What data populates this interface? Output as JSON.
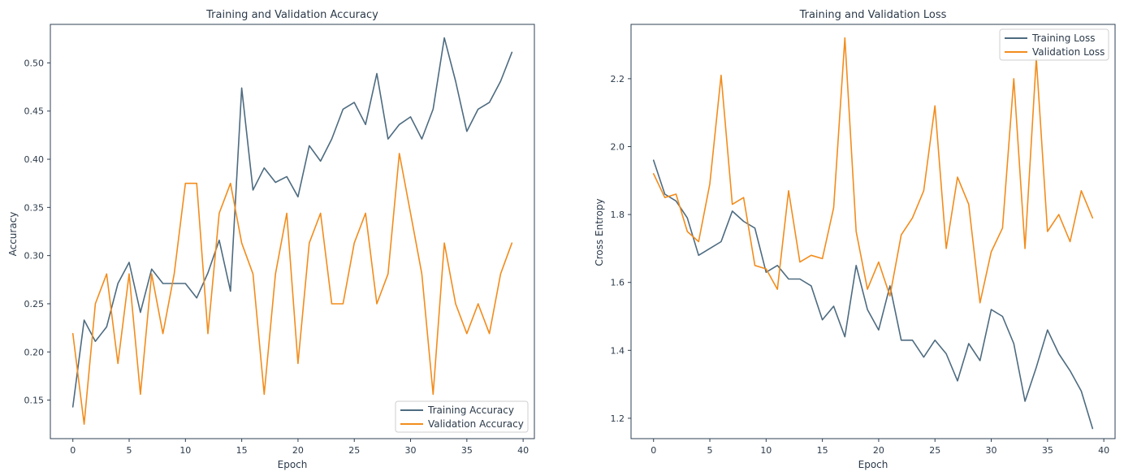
{
  "chart_data": [
    {
      "type": "line",
      "title": "Training and Validation Accuracy",
      "xlabel": "Epoch",
      "ylabel": "Accuracy",
      "xlim": [
        -2,
        41
      ],
      "ylim": [
        0.11,
        0.54
      ],
      "xticks": [
        0,
        5,
        10,
        15,
        20,
        25,
        30,
        35,
        40
      ],
      "yticks": [
        0.15,
        0.2,
        0.25,
        0.3,
        0.35,
        0.4,
        0.45,
        0.5
      ],
      "ytick_decimals": 2,
      "grid": false,
      "legend_position": "lower-right",
      "x": [
        0,
        1,
        2,
        3,
        4,
        5,
        6,
        7,
        8,
        9,
        10,
        11,
        12,
        13,
        14,
        15,
        16,
        17,
        18,
        19,
        20,
        21,
        22,
        23,
        24,
        25,
        26,
        27,
        28,
        29,
        30,
        31,
        32,
        33,
        34,
        35,
        36,
        37,
        38,
        39
      ],
      "series": [
        {
          "name": "Training Accuracy",
          "color": "#4d6b80",
          "values": [
            0.143,
            0.233,
            0.211,
            0.226,
            0.271,
            0.293,
            0.241,
            0.286,
            0.271,
            0.271,
            0.271,
            0.256,
            0.282,
            0.316,
            0.263,
            0.474,
            0.368,
            0.391,
            0.376,
            0.382,
            0.361,
            0.414,
            0.398,
            0.421,
            0.452,
            0.459,
            0.436,
            0.489,
            0.421,
            0.436,
            0.444,
            0.421,
            0.452,
            0.526,
            0.481,
            0.429,
            0.452,
            0.459,
            0.481,
            0.511
          ]
        },
        {
          "name": "Validation Accuracy",
          "color": "#f28c1c",
          "values": [
            0.219,
            0.125,
            0.25,
            0.281,
            0.188,
            0.281,
            0.156,
            0.281,
            0.219,
            0.281,
            0.375,
            0.375,
            0.219,
            0.344,
            0.375,
            0.313,
            0.281,
            0.156,
            0.281,
            0.344,
            0.188,
            0.313,
            0.344,
            0.25,
            0.25,
            0.313,
            0.344,
            0.25,
            0.281,
            0.406,
            0.344,
            0.281,
            0.156,
            0.313,
            0.25,
            0.219,
            0.25,
            0.219,
            0.281,
            0.313
          ]
        }
      ]
    },
    {
      "type": "line",
      "title": "Training and Validation Loss",
      "xlabel": "Epoch",
      "ylabel": "Cross Entropy",
      "xlim": [
        -2,
        41
      ],
      "ylim": [
        1.14,
        2.36
      ],
      "xticks": [
        0,
        5,
        10,
        15,
        20,
        25,
        30,
        35,
        40
      ],
      "yticks": [
        1.2,
        1.4,
        1.6,
        1.8,
        2.0,
        2.2
      ],
      "ytick_decimals": 1,
      "grid": false,
      "legend_position": "upper-right",
      "x": [
        0,
        1,
        2,
        3,
        4,
        5,
        6,
        7,
        8,
        9,
        10,
        11,
        12,
        13,
        14,
        15,
        16,
        17,
        18,
        19,
        20,
        21,
        22,
        23,
        24,
        25,
        26,
        27,
        28,
        29,
        30,
        31,
        32,
        33,
        34,
        35,
        36,
        37,
        38,
        39
      ],
      "series": [
        {
          "name": "Training Loss",
          "color": "#4d6b80",
          "values": [
            1.96,
            1.86,
            1.84,
            1.79,
            1.68,
            1.7,
            1.72,
            1.81,
            1.78,
            1.76,
            1.63,
            1.65,
            1.61,
            1.61,
            1.59,
            1.49,
            1.53,
            1.44,
            1.65,
            1.52,
            1.46,
            1.59,
            1.43,
            1.43,
            1.38,
            1.43,
            1.39,
            1.31,
            1.42,
            1.37,
            1.52,
            1.5,
            1.42,
            1.25,
            1.35,
            1.46,
            1.39,
            1.34,
            1.28,
            1.17
          ]
        },
        {
          "name": "Validation Loss",
          "color": "#f28c1c",
          "values": [
            1.92,
            1.85,
            1.86,
            1.75,
            1.72,
            1.89,
            2.21,
            1.83,
            1.85,
            1.65,
            1.64,
            1.58,
            1.87,
            1.66,
            1.68,
            1.67,
            1.82,
            2.32,
            1.75,
            1.58,
            1.66,
            1.56,
            1.74,
            1.79,
            1.87,
            2.12,
            1.7,
            1.91,
            1.83,
            1.54,
            1.69,
            1.76,
            2.2,
            1.7,
            2.26,
            1.75,
            1.8,
            1.72,
            1.87,
            1.79
          ]
        }
      ]
    }
  ]
}
